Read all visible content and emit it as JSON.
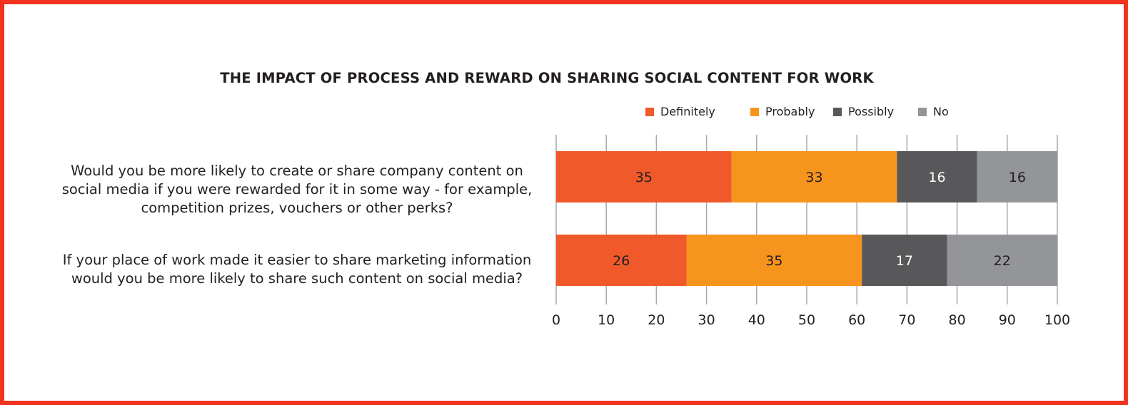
{
  "chart_data": {
    "type": "bar",
    "orientation": "horizontal",
    "stacked": true,
    "title": "THE IMPACT OF PROCESS AND REWARD ON SHARING SOCIAL CONTENT FOR WORK",
    "categories": [
      "Would you be more likely to create or share company content on social media if you were rewarded for it in some way - for example, competition prizes, vouchers or other perks?",
      "If your place of work made it easier to share marketing information would you be more likely to share such content on social media?"
    ],
    "category_lines": [
      [
        "Would you be more likely to create or share company content on",
        "social media if you were rewarded for it in some way - for example,",
        "competition prizes, vouchers or other perks?"
      ],
      [
        "If your place of work made it easier to share marketing information",
        "would you be more likely to share such content on social media?"
      ]
    ],
    "series": [
      {
        "name": "Definitely",
        "values": [
          35,
          26
        ],
        "color": "#f05a2b",
        "label_color": "#231f20"
      },
      {
        "name": "Probably",
        "values": [
          33,
          35
        ],
        "color": "#f7941d",
        "label_color": "#231f20"
      },
      {
        "name": "Possibly",
        "values": [
          16,
          17
        ],
        "color": "#58585a",
        "label_color": "#ffffff"
      },
      {
        "name": "No",
        "values": [
          16,
          22
        ],
        "color": "#939598",
        "label_color": "#231f20"
      }
    ],
    "xlim": [
      0,
      100
    ],
    "xticks": [
      0,
      10,
      20,
      30,
      40,
      50,
      60,
      70,
      80,
      90,
      100
    ],
    "grid": true,
    "legend_position": "top"
  }
}
